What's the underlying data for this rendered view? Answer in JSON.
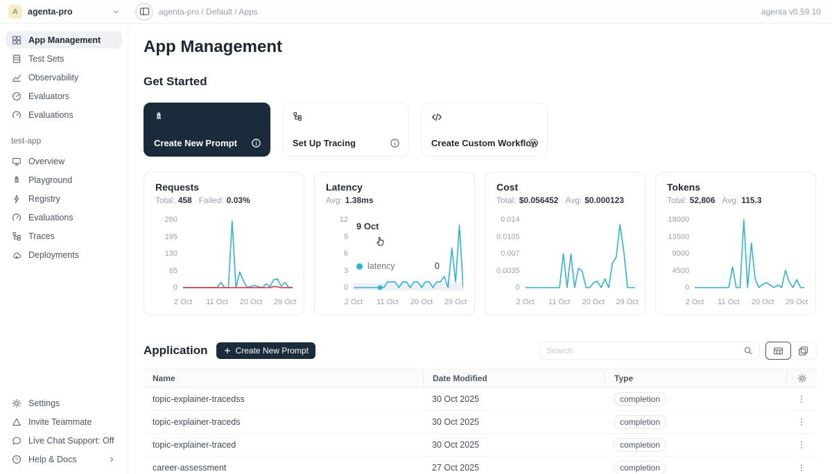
{
  "header": {
    "workspace": "agenta-pro",
    "workspace_avatar_letter": "A",
    "breadcrumb": "agenta-pro / Default / Apps",
    "version": "agenta v0.59.10"
  },
  "sidebar": {
    "top_items": [
      {
        "label": "App Management"
      },
      {
        "label": "Test Sets"
      },
      {
        "label": "Observability"
      },
      {
        "label": "Evaluators"
      },
      {
        "label": "Evaluations"
      }
    ],
    "app_section_label": "test-app",
    "app_items": [
      {
        "label": "Overview"
      },
      {
        "label": "Playground"
      },
      {
        "label": "Registry"
      },
      {
        "label": "Evaluations"
      },
      {
        "label": "Traces"
      },
      {
        "label": "Deployments"
      }
    ],
    "bottom_items": [
      {
        "label": "Settings"
      },
      {
        "label": "Invite Teammate"
      },
      {
        "label": "Live Chat Support: Off"
      },
      {
        "label": "Help & Docs"
      }
    ]
  },
  "main": {
    "title": "App Management",
    "get_started": {
      "title": "Get Started",
      "cards": [
        {
          "label": "Create New Prompt"
        },
        {
          "label": "Set Up Tracing"
        },
        {
          "label": "Create Custom Workflow"
        }
      ]
    },
    "application": {
      "title": "Application",
      "create_button_label": "Create New Prompt",
      "search_placeholder": "Search",
      "table": {
        "columns": [
          "Name",
          "Date Modified",
          "Type"
        ],
        "rows": [
          {
            "name": "topic-explainer-tracedss",
            "date_modified": "30 Oct 2025",
            "type": "completion"
          },
          {
            "name": "topic-explainer-traceds",
            "date_modified": "30 Oct 2025",
            "type": "completion"
          },
          {
            "name": "topic-explainer-traced",
            "date_modified": "30 Oct 2025",
            "type": "completion"
          },
          {
            "name": "career-assessment",
            "date_modified": "27 Oct 2025",
            "type": "completion"
          }
        ]
      }
    }
  },
  "tooltip": {
    "title": "9 Oct",
    "series_label": "latency",
    "value": "0",
    "color": "#29b5d8"
  },
  "colors": {
    "accent_dark": "#1a2b3b",
    "line_cyan": "#29b5d8",
    "line_red": "#f5222d"
  },
  "chart_data": [
    {
      "type": "line",
      "title": "Requests",
      "stats": [
        {
          "label": "Total:",
          "value": "458"
        },
        {
          "label": "Failed:",
          "value": "0.03%"
        }
      ],
      "x_days": [
        2,
        3,
        4,
        5,
        6,
        7,
        8,
        9,
        10,
        11,
        12,
        13,
        14,
        15,
        16,
        17,
        18,
        19,
        20,
        21,
        22,
        23,
        24,
        25,
        26,
        27,
        28,
        29,
        30,
        31
      ],
      "x_tick_days": [
        2,
        11,
        20,
        29
      ],
      "x_tick_labels": [
        "2 Oct",
        "11 Oct",
        "20 Oct",
        "29 Oct"
      ],
      "y_ticks": [
        "260",
        "195",
        "130",
        "65",
        "0"
      ],
      "ymax": 260,
      "series": [
        {
          "name": "requests",
          "color": "#29b5d8",
          "values": [
            0,
            0,
            0,
            0,
            0,
            0,
            0,
            0,
            0,
            0,
            20,
            0,
            0,
            255,
            0,
            60,
            25,
            0,
            5,
            8,
            3,
            0,
            15,
            3,
            30,
            33,
            5,
            20,
            0,
            0
          ]
        },
        {
          "name": "failed",
          "color": "#f5222d",
          "values": [
            0,
            0,
            0,
            0,
            0,
            0,
            0,
            0,
            0,
            0,
            0,
            0,
            0,
            0,
            0,
            0,
            0,
            0,
            0,
            0,
            0,
            0,
            0,
            0,
            4,
            3,
            0,
            0,
            0,
            0
          ]
        }
      ]
    },
    {
      "type": "line",
      "title": "Latency",
      "stats": [
        {
          "label": "Avg:",
          "value": "1.38ms"
        }
      ],
      "x_days": [
        2,
        3,
        4,
        5,
        6,
        7,
        8,
        9,
        10,
        11,
        12,
        13,
        14,
        15,
        16,
        17,
        18,
        19,
        20,
        21,
        22,
        23,
        24,
        25,
        26,
        27,
        28,
        29,
        30,
        31
      ],
      "x_tick_days": [
        2,
        11,
        20,
        29
      ],
      "x_tick_labels": [
        "2 Oct",
        "11 Oct",
        "20 Oct",
        "29 Oct"
      ],
      "y_ticks": [
        "12",
        "9",
        "6",
        "3",
        "0"
      ],
      "ymax": 12,
      "hover_band": true,
      "marker": {
        "day": 9,
        "value": 0
      },
      "series": [
        {
          "name": "latency",
          "color": "#29b5d8",
          "values": [
            0,
            0,
            0,
            0,
            0,
            0,
            0,
            0,
            0,
            1,
            1,
            1,
            0,
            1,
            1,
            0,
            1,
            1,
            0,
            1,
            1,
            0,
            1,
            1,
            2,
            0,
            7,
            1,
            11,
            0
          ]
        }
      ]
    },
    {
      "type": "line",
      "title": "Cost",
      "stats": [
        {
          "label": "Total:",
          "value": "$0.056452"
        },
        {
          "label": "Avg:",
          "value": "$0.000123"
        }
      ],
      "x_days": [
        2,
        3,
        4,
        5,
        6,
        7,
        8,
        9,
        10,
        11,
        12,
        13,
        14,
        15,
        16,
        17,
        18,
        19,
        20,
        21,
        22,
        23,
        24,
        25,
        26,
        27,
        28,
        29,
        30,
        31
      ],
      "x_tick_days": [
        2,
        11,
        20,
        29
      ],
      "x_tick_labels": [
        "2 Oct",
        "11 Oct",
        "20 Oct",
        "29 Oct"
      ],
      "y_ticks": [
        "0.014",
        "0.0105",
        "0.007",
        "0.0035",
        "0"
      ],
      "ymax": 0.014,
      "series": [
        {
          "name": "cost",
          "color": "#29b5d8",
          "values": [
            0,
            0,
            0,
            0,
            0,
            0,
            0,
            0,
            0,
            0,
            0.007,
            0,
            0.0069,
            0,
            0.004,
            0.0034,
            0,
            0,
            0.001,
            0.0013,
            0,
            0.0018,
            0,
            0.005,
            0.0063,
            0.013,
            0.0075,
            0,
            0,
            0
          ]
        }
      ]
    },
    {
      "type": "line",
      "title": "Tokens",
      "stats": [
        {
          "label": "Total:",
          "value": "52,806"
        },
        {
          "label": "Avg:",
          "value": "115.3"
        }
      ],
      "x_days": [
        2,
        3,
        4,
        5,
        6,
        7,
        8,
        9,
        10,
        11,
        12,
        13,
        14,
        15,
        16,
        17,
        18,
        19,
        20,
        21,
        22,
        23,
        24,
        25,
        26,
        27,
        28,
        29,
        30,
        31
      ],
      "x_tick_days": [
        2,
        11,
        20,
        29
      ],
      "x_tick_labels": [
        "2 Oct",
        "11 Oct",
        "20 Oct",
        "29 Oct"
      ],
      "y_ticks": [
        "18000",
        "13500",
        "9000",
        "4500",
        "0"
      ],
      "ymax": 18000,
      "series": [
        {
          "name": "tokens",
          "color": "#29b5d8",
          "values": [
            0,
            0,
            0,
            0,
            0,
            0,
            0,
            0,
            0,
            0,
            5500,
            0,
            0,
            18000,
            0,
            11800,
            2200,
            0,
            900,
            1300,
            600,
            0,
            700,
            0,
            4600,
            1500,
            0,
            2100,
            0,
            0
          ]
        }
      ]
    }
  ]
}
